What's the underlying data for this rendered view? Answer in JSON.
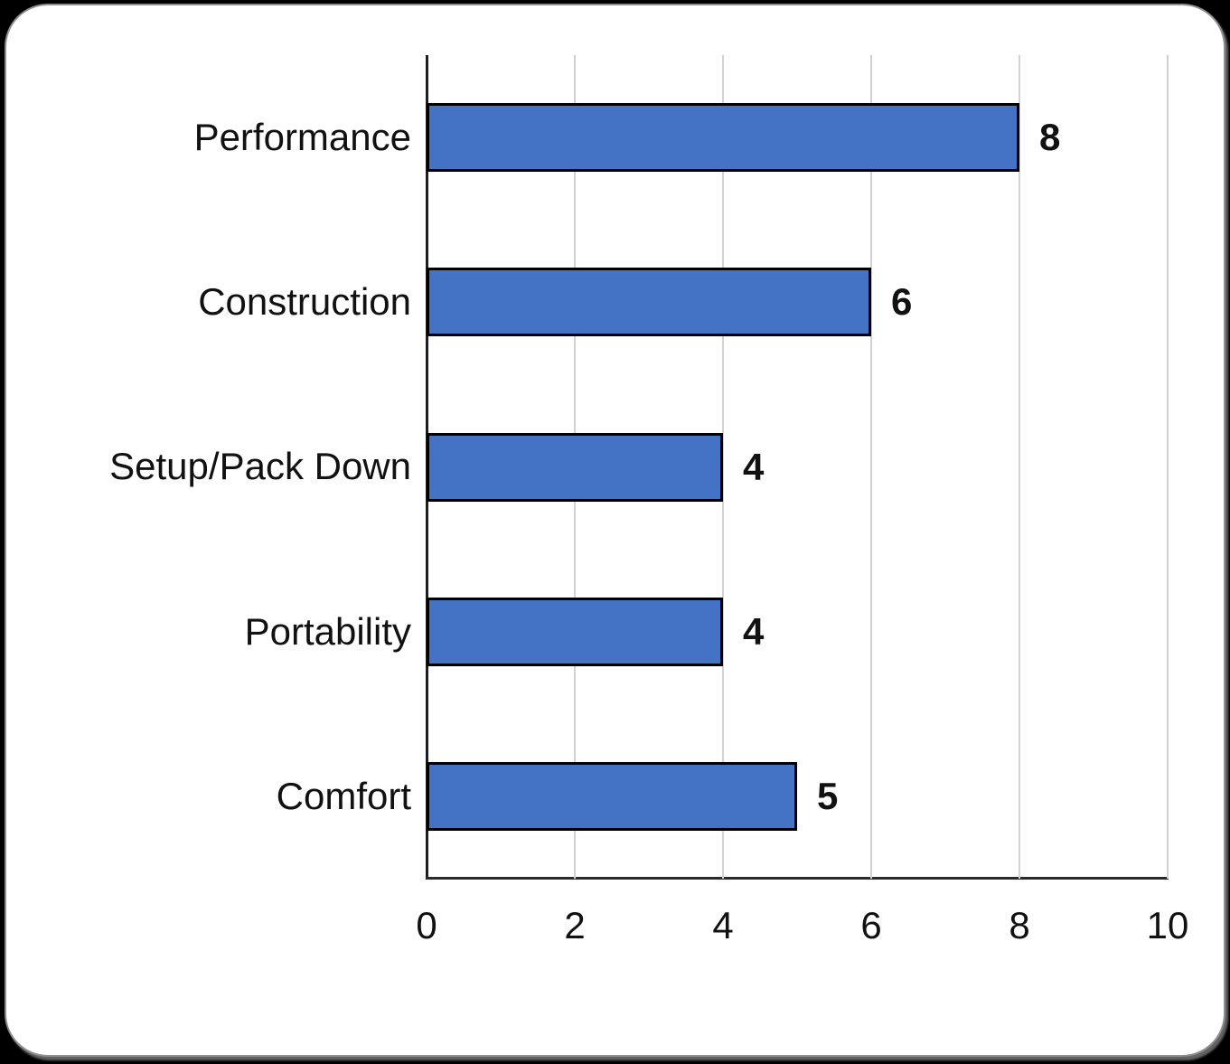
{
  "window": {
    "background_color": "#000000",
    "card_background": "#ffffff",
    "card_border_color": "#8f8f8f"
  },
  "chart_data": {
    "type": "bar",
    "orientation": "horizontal",
    "title": "",
    "xlabel": "",
    "ylabel": "",
    "categories": [
      "Performance",
      "Construction",
      "Setup/Pack Down",
      "Portability",
      "Comfort"
    ],
    "values": [
      8,
      6,
      4,
      4,
      5
    ],
    "data_labels": [
      "8",
      "6",
      "4",
      "4",
      "5"
    ],
    "xlim": [
      0,
      10
    ],
    "x_ticks": [
      0,
      2,
      4,
      6,
      8,
      10
    ],
    "x_tick_labels": [
      "0",
      "2",
      "4",
      "6",
      "8",
      "10"
    ],
    "grid": "vertical-major-on",
    "legend": "none",
    "bar_color": "#4472c4",
    "bar_border_color": "#000000",
    "gridline_color": "#d2d2d2",
    "axis_line_color": "#1d1d1d",
    "label_color": "#111111"
  }
}
